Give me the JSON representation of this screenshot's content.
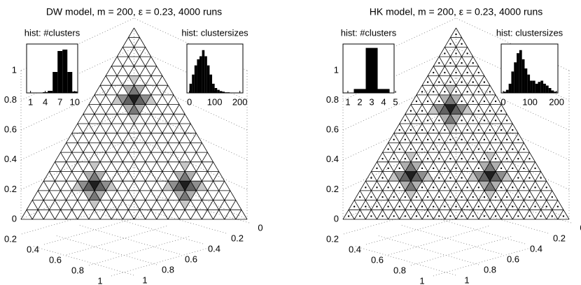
{
  "chart_data": [
    {
      "type": "ternary",
      "title": "DW model, m = 200, ε = 0.23, 4000 runs",
      "ylim": [
        0,
        1
      ],
      "yticks": [
        0,
        0.2,
        0.4,
        0.6,
        0.8,
        1
      ],
      "xticks": [
        0.2,
        0.4,
        0.6,
        0.8,
        1
      ],
      "zticks": [
        0,
        0.2,
        0.4,
        0.6,
        0.8,
        1
      ],
      "divisions": 20,
      "cell_dots": false,
      "cells": {
        "rows": [
          12,
          12,
          12,
          12,
          12,
          12,
          12,
          13,
          13,
          13,
          11,
          11,
          11,
          14,
          10,
          3,
          3,
          3,
          3,
          3,
          3,
          3,
          4,
          4,
          4,
          2,
          2,
          2,
          5,
          1,
          3,
          3,
          3,
          3,
          3,
          3,
          3,
          4,
          4,
          4,
          2,
          2,
          2,
          5,
          1
        ],
        "cols": [
          4,
          5,
          6,
          7,
          8,
          9,
          10,
          5,
          6,
          7,
          7,
          8,
          9,
          5,
          9,
          6,
          7,
          8,
          9,
          10,
          11,
          12,
          7,
          8,
          9,
          9,
          10,
          11,
          7,
          11,
          22,
          23,
          24,
          25,
          26,
          27,
          28,
          23,
          24,
          25,
          25,
          26,
          27,
          23,
          27
        ],
        "values": [
          0.25,
          0.5,
          0.7,
          1,
          0.7,
          0.5,
          0.25,
          0.35,
          0.6,
          0.35,
          0.35,
          0.6,
          0.35,
          0.25,
          0.25,
          0.25,
          0.5,
          0.7,
          1,
          0.7,
          0.5,
          0.25,
          0.35,
          0.6,
          0.35,
          0.35,
          0.6,
          0.35,
          0.25,
          0.25,
          0.25,
          0.5,
          0.7,
          1,
          0.7,
          0.5,
          0.25,
          0.35,
          0.6,
          0.35,
          0.35,
          0.6,
          0.35,
          0.25,
          0.25
        ]
      },
      "insets": [
        {
          "type": "bar",
          "title": "hist: #clusters",
          "x": [
            1,
            2,
            3,
            4,
            5,
            6,
            7,
            8,
            9,
            10
          ],
          "values": [
            0,
            0,
            0,
            0.01,
            0.03,
            0.3,
            0.6,
            0.62,
            0.3,
            0.02
          ],
          "xlim": [
            0.2,
            10.6
          ],
          "ylim": [
            0,
            0.7
          ],
          "xticks": [
            1,
            4,
            7,
            10
          ]
        },
        {
          "type": "histogram",
          "title": "hist: clustersizes",
          "bins": [
            0,
            10,
            20,
            30,
            40,
            50,
            60,
            70,
            80,
            90,
            100,
            110,
            120,
            130,
            140,
            150,
            160
          ],
          "values": [
            0.15,
            0.3,
            0.45,
            0.55,
            0.6,
            0.7,
            0.6,
            0.45,
            0.3,
            0.15,
            0.08,
            0.05,
            0.03,
            0.02,
            0.01,
            0.01
          ],
          "xlim": [
            -10,
            212
          ],
          "ylim": [
            0,
            0.8
          ],
          "xticks": [
            0,
            100,
            200
          ]
        }
      ]
    },
    {
      "type": "ternary",
      "title": "HK model, m = 200, ε = 0.23, 4000 runs",
      "ylim": [
        0,
        1
      ],
      "yticks": [
        0,
        0.2,
        0.4,
        0.6,
        0.8,
        1
      ],
      "xticks": [
        0.2,
        0.4,
        0.6,
        0.8,
        1
      ],
      "zticks": [
        0,
        0.2,
        0.4,
        0.6,
        0.8,
        1
      ],
      "divisions": 20,
      "cell_dots": true,
      "cells": {
        "rows": [
          11,
          11,
          11,
          11,
          11,
          11,
          11,
          12,
          12,
          12,
          10,
          10,
          10,
          13,
          9,
          4,
          4,
          4,
          4,
          4,
          4,
          4,
          5,
          5,
          5,
          3,
          3,
          3,
          6,
          2,
          4,
          4,
          4,
          4,
          4,
          4,
          4,
          5,
          5,
          5,
          3,
          3,
          3,
          6,
          2
        ],
        "cols": [
          4,
          5,
          6,
          7,
          8,
          9,
          10,
          5,
          6,
          7,
          7,
          8,
          9,
          5,
          9,
          4,
          5,
          6,
          7,
          8,
          9,
          10,
          5,
          6,
          7,
          7,
          8,
          9,
          5,
          9,
          18,
          19,
          20,
          21,
          22,
          23,
          24,
          19,
          20,
          21,
          21,
          22,
          23,
          19,
          23
        ],
        "values": [
          0.25,
          0.5,
          0.7,
          1,
          0.7,
          0.5,
          0.25,
          0.35,
          0.6,
          0.35,
          0.35,
          0.6,
          0.35,
          0.25,
          0.25,
          0.25,
          0.5,
          0.7,
          1,
          0.7,
          0.5,
          0.25,
          0.35,
          0.6,
          0.35,
          0.35,
          0.6,
          0.35,
          0.25,
          0.25,
          0.25,
          0.5,
          0.7,
          1,
          0.7,
          0.5,
          0.25,
          0.35,
          0.6,
          0.35,
          0.35,
          0.6,
          0.35,
          0.25,
          0.25
        ]
      },
      "insets": [
        {
          "type": "bar",
          "title": "hist: #clusters",
          "x": [
            1,
            2,
            3,
            4,
            5
          ],
          "values": [
            0,
            0.08,
            0.92,
            0.08,
            0
          ],
          "xlim": [
            0.59,
            4.88
          ],
          "ylim": [
            0,
            1
          ],
          "xticks": [
            1,
            2,
            3,
            4,
            5
          ]
        },
        {
          "type": "histogram",
          "title": "hist: clustersizes",
          "bins": [
            0,
            10,
            20,
            30,
            40,
            50,
            60,
            70,
            80,
            90,
            100,
            110,
            120,
            130,
            140,
            150,
            160,
            170,
            180,
            190,
            200
          ],
          "values": [
            0.02,
            0.05,
            0.15,
            0.35,
            0.5,
            0.65,
            0.7,
            0.55,
            0.4,
            0.3,
            0.2,
            0.2,
            0.15,
            0.18,
            0.2,
            0.15,
            0.12,
            0.08,
            0.04,
            0.02
          ],
          "xlim": [
            -8,
            205
          ],
          "ylim": [
            0,
            0.8
          ],
          "xticks": [
            0,
            100,
            200
          ]
        }
      ]
    }
  ]
}
